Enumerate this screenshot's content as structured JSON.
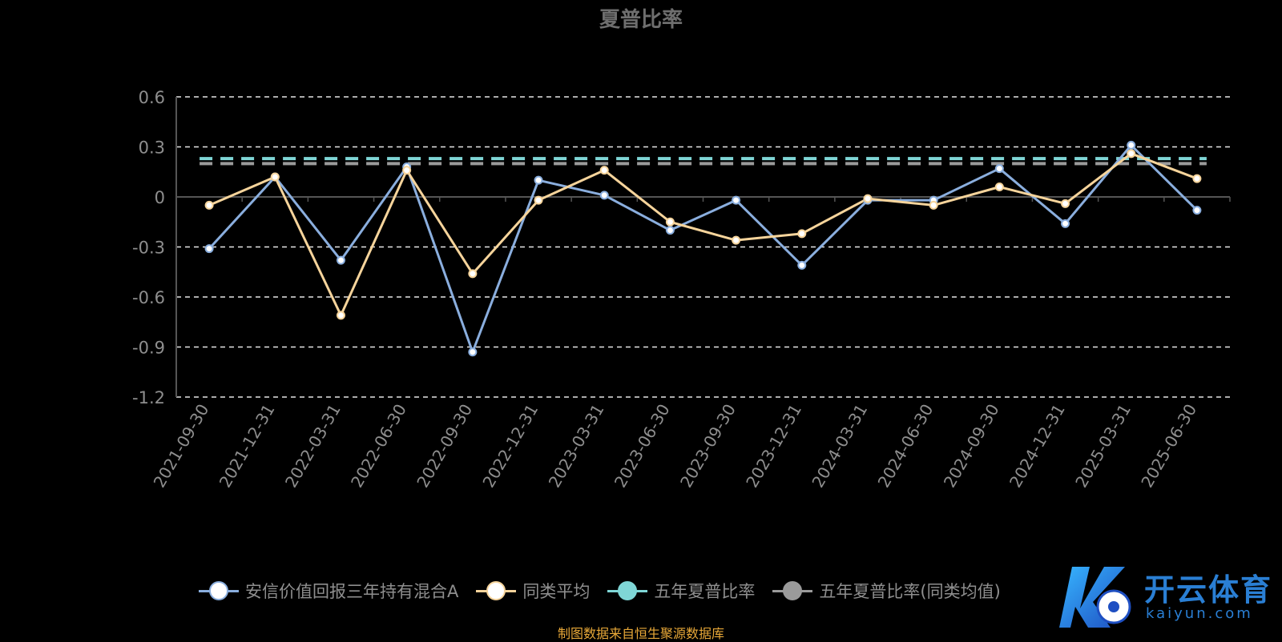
{
  "chart_data": {
    "type": "line",
    "title": "夏普比率",
    "x": [
      "2021-09-30",
      "2021-12-31",
      "2022-03-31",
      "2022-06-30",
      "2022-09-30",
      "2022-12-31",
      "2023-03-31",
      "2023-06-30",
      "2023-09-30",
      "2023-12-31",
      "2024-03-31",
      "2024-06-30",
      "2024-09-30",
      "2024-12-31",
      "2025-03-31",
      "2025-06-30"
    ],
    "yticks": [
      "0.6",
      "0.3",
      "0",
      "-0.3",
      "-0.6",
      "-0.9",
      "-1.2"
    ],
    "ylim": [
      -1.2,
      0.6
    ],
    "grid": true,
    "legend_position": "bottom",
    "series": [
      {
        "name": "安信价值回报三年持有混合A",
        "color": "#8aaede",
        "values": [
          -0.31,
          0.12,
          -0.38,
          0.18,
          -0.93,
          0.1,
          0.01,
          -0.2,
          -0.02,
          -0.41,
          -0.02,
          -0.02,
          0.17,
          -0.16,
          0.31,
          -0.08
        ]
      },
      {
        "name": "同类平均",
        "color": "#f6d49b",
        "values": [
          -0.05,
          0.12,
          -0.71,
          0.16,
          -0.46,
          -0.02,
          0.16,
          -0.15,
          -0.26,
          -0.22,
          -0.01,
          -0.05,
          0.06,
          -0.04,
          0.26,
          0.11
        ]
      },
      {
        "name": "五年夏普比率",
        "color": "#7fd6d6",
        "constant": 0.23
      },
      {
        "name": "五年夏普比率(同类均值)",
        "color": "#9a9a9a",
        "constant": 0.2
      }
    ]
  },
  "footnote": "制图数据来自恒生聚源数据库",
  "watermark": {
    "brand": "开云体育",
    "domain": "kaiyun.com"
  }
}
